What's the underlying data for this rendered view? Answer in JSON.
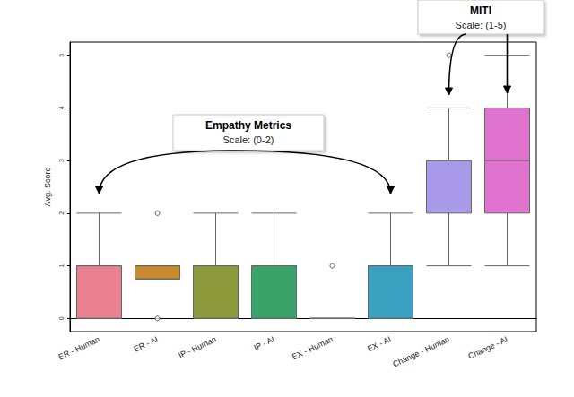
{
  "chart_data": {
    "type": "boxplot",
    "y_label": "Avg. Score",
    "categories": [
      "ER - Human",
      "ER - AI",
      "IP - Human",
      "IP - AI",
      "EX - Human",
      "EX - AI",
      "Change - Human",
      "Change - AI"
    ],
    "boxes": [
      [
        0,
        0,
        1,
        1,
        2
      ],
      [
        0.75,
        0.75,
        1,
        1,
        1
      ],
      [
        0,
        0,
        1,
        1,
        2
      ],
      [
        0,
        0,
        1,
        1,
        2
      ],
      [
        0,
        0,
        0,
        0,
        0
      ],
      [
        0,
        0,
        1,
        1,
        2
      ],
      [
        1,
        2,
        3,
        3,
        4
      ],
      [
        1,
        2,
        3,
        4,
        5
      ]
    ],
    "outliers": [
      {
        "category": "ER - AI",
        "value": 2
      },
      {
        "category": "ER - AI",
        "value": 0
      },
      {
        "category": "EX - Human",
        "value": 1
      },
      {
        "category": "Change - Human",
        "value": 5
      }
    ],
    "colors": [
      "#e8808f",
      "#c98a2e",
      "#8c9a3c",
      "#3aa36a",
      "#3aa593",
      "#3aa0c0",
      "#a89ae8",
      "#e072d0"
    ],
    "ylim": [
      -0.25,
      5.25
    ],
    "yticks": [
      0,
      1,
      2,
      3,
      4,
      5
    ],
    "grid": false,
    "annotations": [
      {
        "title": "Empathy Metrics",
        "text": "Scale: (0-2)",
        "targets": [
          "ER - Human",
          "EX - AI"
        ]
      },
      {
        "title": "MITI",
        "text": "Scale: (1-5)",
        "targets": [
          "Change - Human",
          "Change - AI"
        ]
      }
    ]
  }
}
